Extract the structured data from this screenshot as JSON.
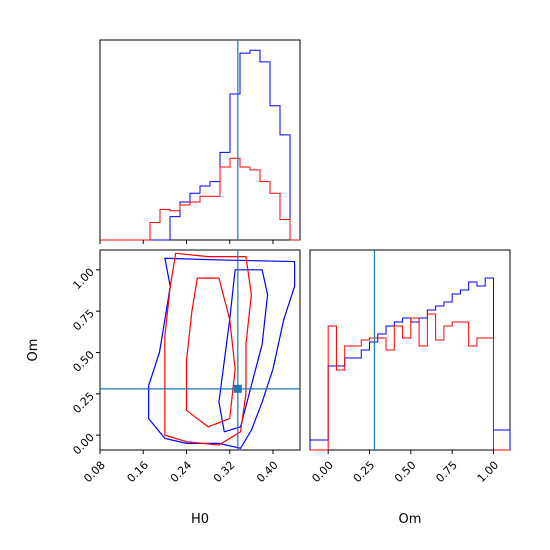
{
  "chart_data": [
    {
      "type": "histogram",
      "panel": "H0 marginal",
      "x_range": [
        0.08,
        0.45
      ],
      "x_ticks": [
        0.08,
        0.16,
        0.24,
        0.32,
        0.4
      ],
      "truth": 0.335,
      "colors": {
        "blue": "#0000ff",
        "red": "#ff0000",
        "truth": "#1f77b4"
      },
      "bins": [
        0.08,
        0.0985,
        0.117,
        0.1355,
        0.154,
        0.1725,
        0.191,
        0.2095,
        0.228,
        0.2465,
        0.265,
        0.2835,
        0.302,
        0.3205,
        0.339,
        0.3575,
        0.376,
        0.3945,
        0.413,
        0.4315,
        0.45
      ],
      "series": [
        {
          "color": "blue",
          "counts": [
            0,
            0,
            0,
            0,
            0,
            0,
            0,
            16,
            26,
            32,
            37,
            40,
            60,
            100,
            128,
            130,
            122,
            92,
            72,
            0
          ]
        },
        {
          "color": "red",
          "counts": [
            0,
            0,
            0,
            0,
            0,
            12,
            21,
            20,
            24,
            26,
            30,
            30,
            50,
            56,
            50,
            48,
            40,
            32,
            14,
            0
          ]
        }
      ]
    },
    {
      "type": "contour",
      "panel": "H0 vs Om",
      "xlabel": "H0",
      "ylabel": "Om",
      "x_range": [
        0.08,
        0.45
      ],
      "y_range": [
        -0.09,
        1.12
      ],
      "x_ticks": [
        0.08,
        0.16,
        0.24,
        0.32,
        0.4
      ],
      "y_ticks": [
        0.0,
        0.25,
        0.5,
        0.75,
        1.0
      ],
      "truth": {
        "H0": 0.335,
        "Om": 0.28
      },
      "series": [
        {
          "color": "blue",
          "level": "outer",
          "points": [
            [
              0.2,
              1.07
            ],
            [
              0.3,
              1.06
            ],
            [
              0.44,
              1.05
            ],
            [
              0.44,
              0.9
            ],
            [
              0.42,
              0.7
            ],
            [
              0.4,
              0.4
            ],
            [
              0.38,
              0.2
            ],
            [
              0.36,
              0.03
            ],
            [
              0.34,
              -0.08
            ],
            [
              0.3,
              -0.05
            ],
            [
              0.24,
              -0.05
            ],
            [
              0.2,
              -0.02
            ],
            [
              0.17,
              0.1
            ],
            [
              0.17,
              0.3
            ],
            [
              0.19,
              0.5
            ],
            [
              0.2,
              0.7
            ],
            [
              0.21,
              0.9
            ]
          ]
        },
        {
          "color": "blue",
          "level": "inner",
          "points": [
            [
              0.33,
              1.0
            ],
            [
              0.38,
              1.0
            ],
            [
              0.39,
              0.85
            ],
            [
              0.38,
              0.55
            ],
            [
              0.36,
              0.3
            ],
            [
              0.34,
              0.05
            ],
            [
              0.31,
              0.02
            ],
            [
              0.3,
              0.2
            ],
            [
              0.31,
              0.45
            ],
            [
              0.32,
              0.7
            ]
          ]
        },
        {
          "color": "red",
          "level": "outer",
          "points": [
            [
              0.22,
              1.1
            ],
            [
              0.28,
              1.08
            ],
            [
              0.35,
              1.08
            ],
            [
              0.36,
              0.85
            ],
            [
              0.35,
              0.55
            ],
            [
              0.35,
              0.25
            ],
            [
              0.34,
              0.02
            ],
            [
              0.3,
              -0.06
            ],
            [
              0.24,
              -0.04
            ],
            [
              0.2,
              0.0
            ],
            [
              0.2,
              0.3
            ],
            [
              0.2,
              0.6
            ],
            [
              0.21,
              0.9
            ]
          ]
        },
        {
          "color": "red",
          "level": "inner",
          "points": [
            [
              0.26,
              0.95
            ],
            [
              0.3,
              0.95
            ],
            [
              0.32,
              0.7
            ],
            [
              0.33,
              0.4
            ],
            [
              0.32,
              0.1
            ],
            [
              0.28,
              0.05
            ],
            [
              0.24,
              0.15
            ],
            [
              0.24,
              0.45
            ],
            [
              0.25,
              0.75
            ]
          ]
        }
      ]
    },
    {
      "type": "histogram",
      "panel": "Om marginal",
      "xlabel": "Om",
      "x_range": [
        -0.11,
        1.1
      ],
      "x_ticks": [
        0.0,
        0.25,
        0.5,
        0.75,
        1.0
      ],
      "truth": 0.28,
      "bins": [
        -0.11,
        -0.05,
        0.0,
        0.05,
        0.1,
        0.15,
        0.2,
        0.25,
        0.3,
        0.35,
        0.4,
        0.45,
        0.5,
        0.55,
        0.6,
        0.65,
        0.7,
        0.75,
        0.8,
        0.85,
        0.9,
        0.95,
        1.0,
        1.05,
        1.1
      ],
      "series": [
        {
          "color": "blue",
          "counts": [
            5,
            5,
            42,
            42,
            46,
            46,
            50,
            54,
            58,
            62,
            64,
            66,
            64,
            66,
            70,
            72,
            74,
            78,
            80,
            84,
            82,
            86,
            10,
            10
          ]
        },
        {
          "color": "red",
          "counts": [
            0,
            0,
            62,
            40,
            52,
            52,
            55,
            56,
            56,
            50,
            62,
            56,
            66,
            52,
            68,
            55,
            62,
            64,
            64,
            52,
            56,
            56,
            0,
            0
          ]
        }
      ]
    }
  ],
  "labels": {
    "h0_xlabel": "H0",
    "om_ylabel": "Om",
    "om_xlabel": "Om",
    "h0_ticks": [
      "0.08",
      "0.16",
      "0.24",
      "0.32",
      "0.40"
    ],
    "om_ticks": [
      "0.00",
      "0.25",
      "0.50",
      "0.75",
      "1.00"
    ]
  }
}
